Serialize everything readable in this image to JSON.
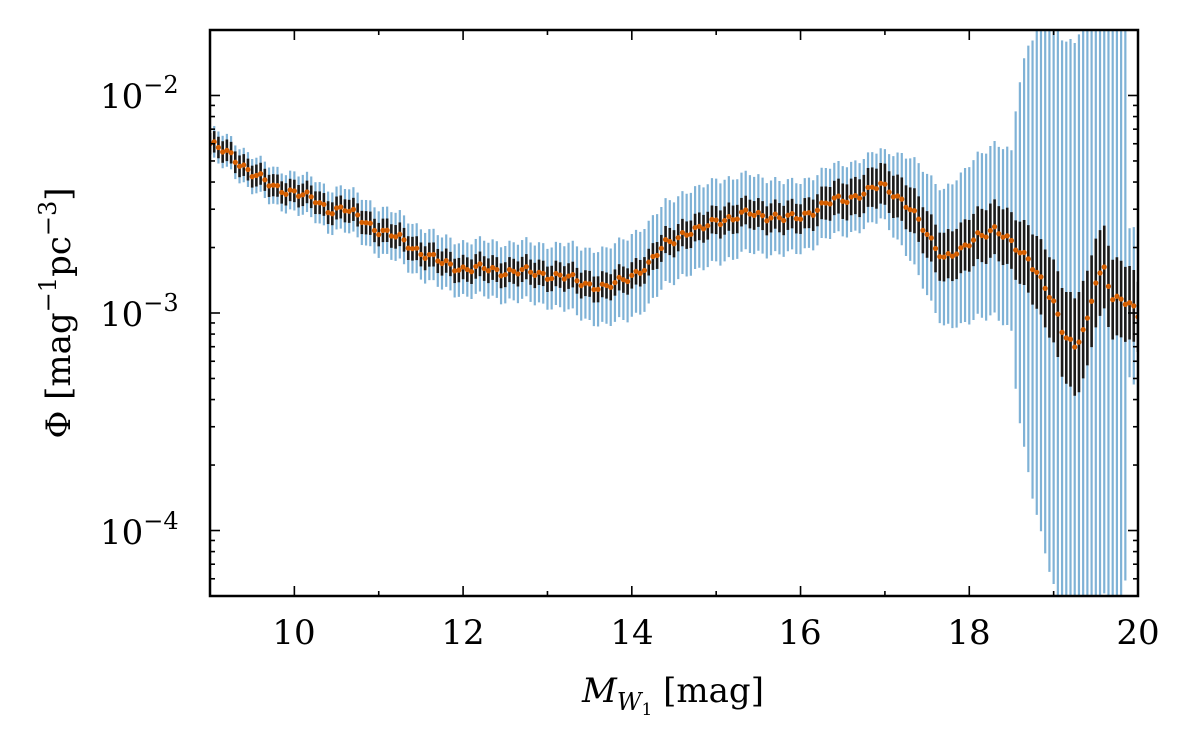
{
  "chart_data": {
    "type": "scatter",
    "title": "",
    "xlabel": "M_W1 [mag]",
    "xlabel_parts": {
      "symbol": "M",
      "sub": "W",
      "subsub": "1",
      "unit": " [mag]"
    },
    "ylabel": "Φ [mag⁻¹pc⁻³]",
    "ylabel_parts": {
      "phi": "Φ [mag",
      "e1": "−1",
      "pc": "pc",
      "e2": "−3",
      "close": "]"
    },
    "xlim": [
      9,
      20
    ],
    "ylim": [
      5e-05,
      0.02
    ],
    "yscale": "log",
    "grid": false,
    "x_ticks": [
      10,
      12,
      14,
      16,
      18,
      20
    ],
    "x_tick_labels": [
      "10",
      "12",
      "14",
      "16",
      "18",
      "20"
    ],
    "y_ticks": [
      0.0001,
      0.001,
      0.01
    ],
    "y_tick_labels": [
      {
        "base": "10",
        "exp": "−4"
      },
      {
        "base": "10",
        "exp": "−3"
      },
      {
        "base": "10",
        "exp": "−2"
      }
    ],
    "colors": {
      "points": "#d55e00",
      "inner_error": "#1a1a1a",
      "outer_error": "#7fb2d6"
    },
    "series": [
      {
        "name": "Φ",
        "x_start": 9.0,
        "x_step": 0.05,
        "points": [
          [
            9.0,
            0.006
          ],
          [
            9.25,
            0.0053
          ],
          [
            9.5,
            0.0044
          ],
          [
            9.75,
            0.0038
          ],
          [
            10.0,
            0.0036
          ],
          [
            10.25,
            0.0033
          ],
          [
            10.4,
            0.003
          ],
          [
            10.6,
            0.003
          ],
          [
            10.8,
            0.0027
          ],
          [
            11.0,
            0.0024
          ],
          [
            11.25,
            0.0022
          ],
          [
            11.5,
            0.0019
          ],
          [
            11.75,
            0.0017
          ],
          [
            12.0,
            0.0016
          ],
          [
            12.25,
            0.0016
          ],
          [
            12.5,
            0.00155
          ],
          [
            12.75,
            0.00155
          ],
          [
            13.0,
            0.0015
          ],
          [
            13.25,
            0.00145
          ],
          [
            13.5,
            0.00135
          ],
          [
            13.7,
            0.0013
          ],
          [
            14.0,
            0.0015
          ],
          [
            14.2,
            0.00165
          ],
          [
            14.4,
            0.0021
          ],
          [
            14.6,
            0.0023
          ],
          [
            14.8,
            0.0024
          ],
          [
            15.0,
            0.0027
          ],
          [
            15.2,
            0.0027
          ],
          [
            15.4,
            0.0029
          ],
          [
            15.6,
            0.0028
          ],
          [
            15.8,
            0.0027
          ],
          [
            16.0,
            0.0028
          ],
          [
            16.2,
            0.003
          ],
          [
            16.4,
            0.0033
          ],
          [
            16.6,
            0.0034
          ],
          [
            16.8,
            0.0036
          ],
          [
            16.95,
            0.0039
          ],
          [
            17.1,
            0.0036
          ],
          [
            17.3,
            0.003
          ],
          [
            17.5,
            0.0023
          ],
          [
            17.7,
            0.0018
          ],
          [
            17.9,
            0.0019
          ],
          [
            18.0,
            0.0021
          ],
          [
            18.1,
            0.0023
          ],
          [
            18.3,
            0.0024
          ],
          [
            18.5,
            0.0021
          ],
          [
            18.7,
            0.0018
          ],
          [
            18.85,
            0.0014
          ],
          [
            19.0,
            0.0011
          ],
          [
            19.1,
            0.00085
          ],
          [
            19.25,
            0.0007
          ],
          [
            19.4,
            0.0009
          ],
          [
            19.5,
            0.0014
          ],
          [
            19.6,
            0.0016
          ],
          [
            19.7,
            0.0012
          ],
          [
            19.9,
            0.0011
          ],
          [
            20.0,
            0.00095
          ]
        ],
        "inner_error_factor": [
          [
            9.0,
            1.12
          ],
          [
            14.0,
            1.15
          ],
          [
            16.0,
            1.17
          ],
          [
            17.5,
            1.28
          ],
          [
            18.5,
            1.35
          ],
          [
            19.0,
            1.55
          ],
          [
            19.3,
            1.7
          ],
          [
            19.6,
            1.55
          ],
          [
            20.0,
            1.45
          ]
        ],
        "outer_error_factor": [
          [
            9.0,
            1.18
          ],
          [
            12.0,
            1.33
          ],
          [
            13.0,
            1.38
          ],
          [
            14.0,
            1.55
          ],
          [
            15.0,
            1.55
          ],
          [
            16.0,
            1.45
          ],
          [
            17.0,
            1.45
          ],
          [
            17.5,
            1.9
          ],
          [
            18.0,
            2.3
          ],
          [
            18.5,
            2.6
          ],
          [
            19.0,
            20
          ],
          [
            19.5,
            30
          ],
          [
            19.8,
            35
          ],
          [
            19.9,
            2.2
          ],
          [
            20.0,
            2.4
          ]
        ]
      }
    ]
  }
}
